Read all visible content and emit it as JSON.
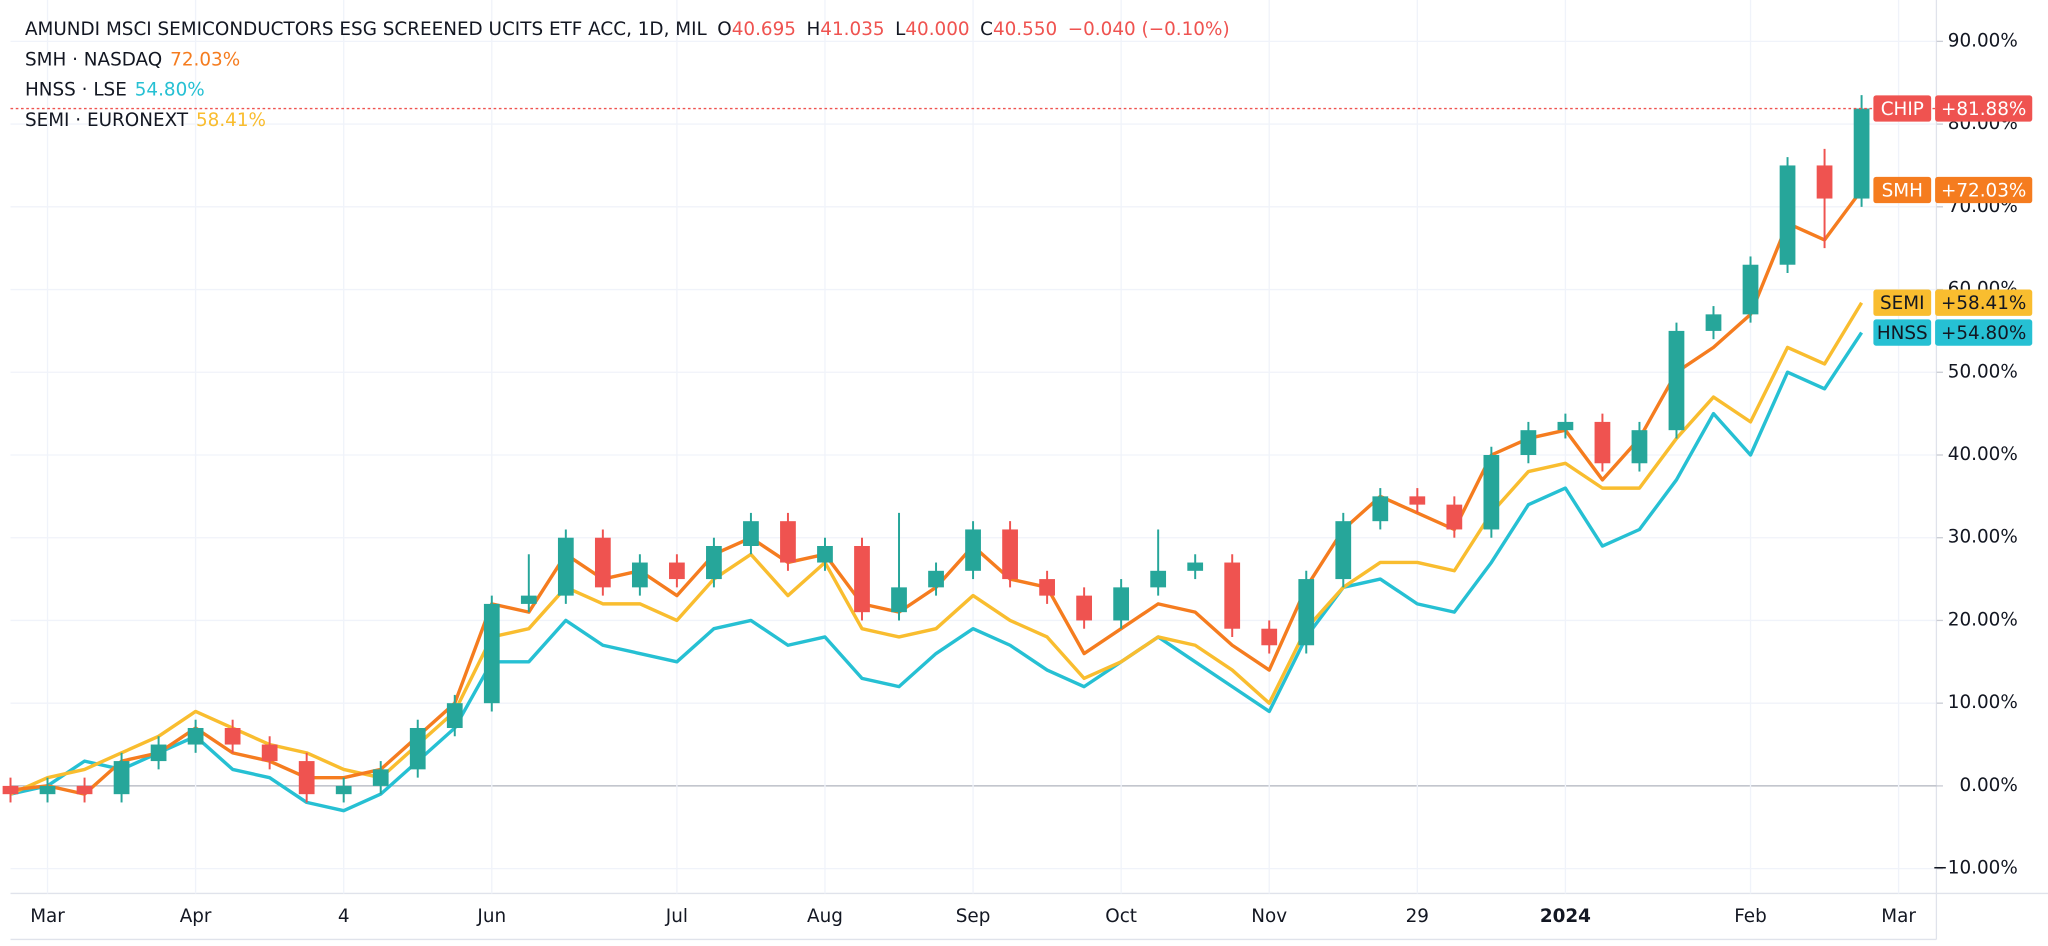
{
  "chart_data": {
    "type": "candlestick",
    "title": "AMUNDI MSCI SEMICONDUCTORS ESG SCREENED UCITS ETF ACC, 1D, MIL",
    "ohlc_legend": [
      {
        "label": "O",
        "value": "40.695"
      },
      {
        "label": "H",
        "value": "41.035"
      },
      {
        "label": "L",
        "value": "40.000"
      },
      {
        "label": "C",
        "value": "40.550"
      }
    ],
    "change": "−0.040 (−0.10%)",
    "name": "CHIP",
    "tag": "+81.88%",
    "up_color": "#26a69a",
    "down_color": "#ef5350",
    "categories": [
      null,
      "Mar",
      null,
      null,
      null,
      "Apr",
      null,
      null,
      null,
      "4",
      null,
      null,
      null,
      "Jun",
      null,
      null,
      null,
      null,
      "Jul",
      null,
      null,
      null,
      "Aug",
      null,
      null,
      null,
      "Sep",
      null,
      null,
      null,
      "Oct",
      null,
      null,
      null,
      "Nov",
      null,
      null,
      null,
      "29",
      null,
      null,
      null,
      "2024",
      null,
      null,
      null,
      null,
      "Feb",
      null,
      null,
      null,
      "Mar"
    ],
    "open": [
      0,
      -1,
      0,
      -1,
      3,
      5,
      7,
      5,
      3,
      -1,
      0,
      2,
      7,
      10,
      22,
      23,
      30,
      24,
      27,
      25,
      29,
      32,
      27,
      29,
      21,
      24,
      26,
      31,
      25,
      23,
      20,
      24,
      26,
      27,
      19,
      17,
      25,
      32,
      35,
      34,
      31,
      40,
      43,
      44,
      39,
      43,
      55,
      57,
      63,
      75,
      71,
      null
    ],
    "high": [
      1,
      1,
      1,
      4,
      6,
      8,
      8,
      6,
      4,
      1,
      3,
      8,
      11,
      23,
      28,
      31,
      31,
      28,
      28,
      30,
      33,
      33,
      30,
      30,
      33,
      27,
      32,
      32,
      26,
      24,
      25,
      31,
      28,
      28,
      20,
      26,
      33,
      36,
      36,
      35,
      41,
      44,
      45,
      45,
      44,
      56,
      58,
      64,
      76,
      77,
      83.5,
      null
    ],
    "low": [
      -2,
      -2,
      -2,
      -2,
      2,
      4,
      4,
      2,
      -2,
      -2,
      -1,
      1,
      6,
      9,
      21,
      22,
      23,
      23,
      24,
      24,
      28,
      26,
      26,
      20,
      20,
      23,
      25,
      24,
      22,
      19,
      19,
      23,
      25,
      18,
      16,
      16,
      24,
      31,
      33,
      30,
      30,
      39,
      42,
      38,
      38,
      42,
      54,
      56,
      62,
      65,
      70,
      null
    ],
    "close": [
      -1,
      0,
      -1,
      3,
      5,
      7,
      5,
      3,
      -1,
      0,
      2,
      7,
      10,
      22,
      23,
      30,
      24,
      27,
      25,
      29,
      32,
      27,
      29,
      21,
      24,
      26,
      31,
      25,
      23,
      20,
      24,
      26,
      27,
      19,
      17,
      25,
      32,
      35,
      34,
      31,
      40,
      43,
      44,
      39,
      43,
      55,
      57,
      63,
      75,
      71,
      81.88,
      null
    ],
    "series": [
      {
        "type": "line",
        "name": "SMH",
        "legend": "SMH · NASDAQ",
        "legend_value": "72.03%",
        "tag": "+72.03%",
        "color": "#f57c1f",
        "tag_text_color": "#ffffff",
        "values": [
          -0.5,
          0,
          -1,
          3,
          4,
          7,
          4,
          3,
          1,
          1,
          2,
          6,
          10,
          22,
          21,
          28,
          25,
          26,
          23,
          28,
          30,
          27,
          28,
          22,
          21,
          24,
          29,
          25,
          24,
          16,
          19,
          22,
          21,
          17,
          14,
          24,
          31,
          35,
          33,
          31,
          40,
          42,
          43,
          37,
          42,
          50,
          53,
          57,
          68,
          66,
          72.03,
          null
        ]
      },
      {
        "type": "line",
        "name": "HNSS",
        "legend": "HNSS · LSE",
        "legend_value": "54.80%",
        "tag": "+54.80%",
        "color": "#26c0d3",
        "tag_text_color": "#131722",
        "values": [
          -1,
          0,
          3,
          2,
          4,
          6,
          2,
          1,
          -2,
          -3,
          -1,
          3,
          7,
          15,
          15,
          20,
          17,
          16,
          15,
          19,
          20,
          17,
          18,
          13,
          12,
          16,
          19,
          17,
          14,
          12,
          15,
          18,
          15,
          12,
          9,
          18,
          24,
          25,
          22,
          21,
          27,
          34,
          36,
          29,
          31,
          37,
          45,
          40,
          50,
          48,
          54.8,
          null
        ]
      },
      {
        "type": "line",
        "name": "SEMI",
        "legend": "SEMI · EURONEXT",
        "legend_value": "58.41%",
        "tag": "+58.41%",
        "color": "#f9bd2f",
        "tag_text_color": "#131722",
        "values": [
          -1,
          1,
          2,
          4,
          6,
          9,
          7,
          5,
          4,
          2,
          1,
          5,
          9,
          18,
          19,
          24,
          22,
          22,
          20,
          25,
          28,
          23,
          27,
          19,
          18,
          19,
          23,
          20,
          18,
          13,
          15,
          18,
          17,
          14,
          10,
          19,
          24,
          27,
          27,
          26,
          33,
          38,
          39,
          36,
          36,
          42,
          47,
          44,
          53,
          51,
          58.41,
          null
        ]
      }
    ],
    "ylim": [
      -13,
      95
    ],
    "yticks": [
      {
        "value": -10,
        "label": "−10.00%"
      },
      {
        "value": 0,
        "label": "0.00%"
      },
      {
        "value": 10,
        "label": "10.00%"
      },
      {
        "value": 20,
        "label": "20.00%"
      },
      {
        "value": 30,
        "label": "30.00%"
      },
      {
        "value": 40,
        "label": "40.00%"
      },
      {
        "value": 50,
        "label": "50.00%"
      },
      {
        "value": 60,
        "label": "60.00%"
      },
      {
        "value": 70,
        "label": "70.00%"
      },
      {
        "value": 80,
        "label": "80.00%"
      },
      {
        "value": 90,
        "label": "90.00%"
      }
    ],
    "grid": true
  }
}
